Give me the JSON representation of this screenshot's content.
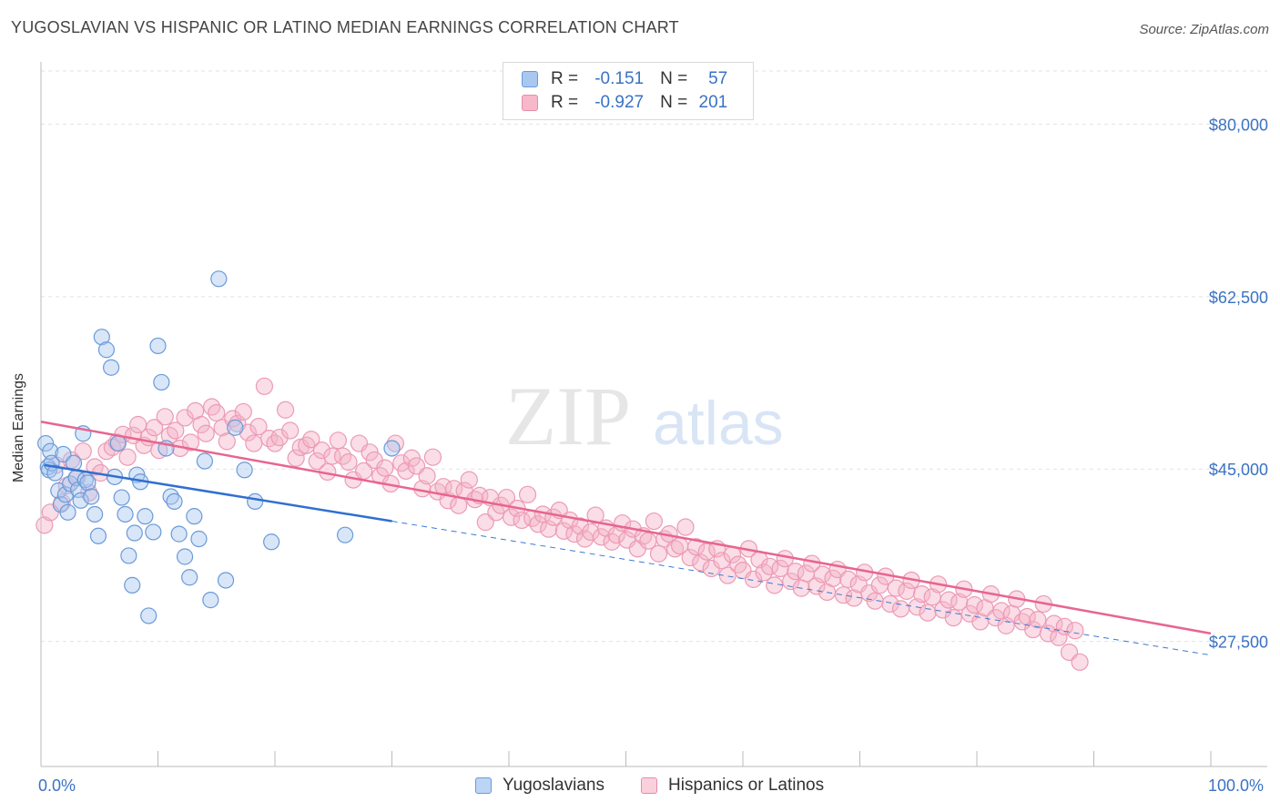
{
  "title": "YUGOSLAVIAN VS HISPANIC OR LATINO MEDIAN EARNINGS CORRELATION CHART",
  "source": "Source: ZipAtlas.com",
  "watermark": {
    "zip": "ZIP",
    "atlas": "atlas"
  },
  "legend_top": {
    "rows": [
      {
        "r_label": "R =",
        "r_value": "-0.151",
        "n_label": "N =",
        "n_value": "57",
        "color": "#a8c8f0",
        "border": "#6a9ad8"
      },
      {
        "r_label": "R =",
        "r_value": "-0.927",
        "n_label": "N =",
        "n_value": "201",
        "color": "#f7b8cc",
        "border": "#e88aa8"
      }
    ]
  },
  "legend_bottom": {
    "series1": "Yugoslavians",
    "series2": "Hispanics or Latinos"
  },
  "colors": {
    "blue": "#3a7ad6",
    "blue_fill": "#a8c8f0",
    "pink": "#e8658f",
    "pink_fill": "#f5b3c8",
    "axis_text": "#3a72c4",
    "grid": "#dddddd"
  },
  "chart_data": {
    "type": "scatter",
    "title": "YUGOSLAVIAN VS HISPANIC OR LATINO MEDIAN EARNINGS CORRELATION CHART",
    "xlabel": "",
    "ylabel": "Median Earnings",
    "x_ticks": [
      "0.0%",
      "100.0%"
    ],
    "y_ticks": [
      {
        "value": 80000,
        "label": "$80,000"
      },
      {
        "value": 62500,
        "label": "$62,500"
      },
      {
        "value": 45000,
        "label": "$45,000"
      },
      {
        "value": 27500,
        "label": "$27,500"
      }
    ],
    "xlim": [
      0,
      100
    ],
    "ylim": [
      14800,
      85400
    ],
    "grid": true,
    "series": [
      {
        "name": "Yugoslavians",
        "color": "#3a7ad6",
        "r": -0.151,
        "n": 57,
        "trend": {
          "x0": 0.3,
          "y0": 45400,
          "x1": 30,
          "y1": 39700,
          "dash_to_x": 100,
          "dash_to_y": 26100
        },
        "points": [
          [
            0.4,
            47600
          ],
          [
            0.6,
            45200
          ],
          [
            0.7,
            44900
          ],
          [
            0.8,
            46800
          ],
          [
            0.9,
            45600
          ],
          [
            1.2,
            44600
          ],
          [
            1.5,
            42800
          ],
          [
            1.7,
            41400
          ],
          [
            1.9,
            46500
          ],
          [
            2.1,
            42400
          ],
          [
            2.3,
            40600
          ],
          [
            2.5,
            43500
          ],
          [
            2.8,
            45600
          ],
          [
            3.0,
            44100
          ],
          [
            3.2,
            42900
          ],
          [
            3.4,
            41800
          ],
          [
            3.6,
            48600
          ],
          [
            3.8,
            43900
          ],
          [
            4.0,
            43600
          ],
          [
            4.3,
            42200
          ],
          [
            4.6,
            40400
          ],
          [
            4.9,
            38200
          ],
          [
            5.2,
            58400
          ],
          [
            5.6,
            57100
          ],
          [
            6.0,
            55300
          ],
          [
            6.3,
            44200
          ],
          [
            6.6,
            47600
          ],
          [
            6.9,
            42100
          ],
          [
            7.2,
            40400
          ],
          [
            7.5,
            36200
          ],
          [
            7.8,
            33200
          ],
          [
            8.0,
            38500
          ],
          [
            8.2,
            44400
          ],
          [
            8.5,
            43700
          ],
          [
            8.9,
            40200
          ],
          [
            9.2,
            30100
          ],
          [
            9.6,
            38600
          ],
          [
            10.0,
            57500
          ],
          [
            10.3,
            53800
          ],
          [
            10.7,
            47100
          ],
          [
            11.1,
            42200
          ],
          [
            11.4,
            41700
          ],
          [
            11.8,
            38400
          ],
          [
            12.3,
            36100
          ],
          [
            12.7,
            34000
          ],
          [
            13.1,
            40200
          ],
          [
            13.5,
            37900
          ],
          [
            14.0,
            45800
          ],
          [
            14.5,
            31700
          ],
          [
            15.2,
            64300
          ],
          [
            15.8,
            33700
          ],
          [
            16.6,
            49200
          ],
          [
            17.4,
            44900
          ],
          [
            18.3,
            41700
          ],
          [
            19.7,
            37600
          ],
          [
            26.0,
            38300
          ],
          [
            30.0,
            47100
          ]
        ]
      },
      {
        "name": "Hispanics or Latinos",
        "color": "#e8658f",
        "r": -0.927,
        "n": 201,
        "trend": {
          "x0": 0.0,
          "y0": 49800,
          "x1": 100,
          "y1": 28300
        },
        "points": [
          [
            0.3,
            39300
          ],
          [
            0.8,
            40600
          ],
          [
            1.3,
            45400
          ],
          [
            1.8,
            41600
          ],
          [
            2.2,
            43300
          ],
          [
            2.6,
            45900
          ],
          [
            3.1,
            44100
          ],
          [
            3.6,
            46800
          ],
          [
            4.1,
            42600
          ],
          [
            4.6,
            45200
          ],
          [
            5.1,
            44600
          ],
          [
            5.6,
            46800
          ],
          [
            6.1,
            47200
          ],
          [
            6.5,
            47700
          ],
          [
            7.0,
            48500
          ],
          [
            7.4,
            46200
          ],
          [
            7.9,
            48400
          ],
          [
            8.3,
            49500
          ],
          [
            8.8,
            47400
          ],
          [
            9.2,
            48200
          ],
          [
            9.7,
            49200
          ],
          [
            10.1,
            46900
          ],
          [
            10.6,
            50300
          ],
          [
            11.0,
            48400
          ],
          [
            11.5,
            48900
          ],
          [
            11.9,
            47100
          ],
          [
            12.3,
            50200
          ],
          [
            12.8,
            47700
          ],
          [
            13.2,
            50900
          ],
          [
            13.7,
            49500
          ],
          [
            14.1,
            48600
          ],
          [
            14.6,
            51300
          ],
          [
            15.0,
            50700
          ],
          [
            15.5,
            49200
          ],
          [
            15.9,
            47800
          ],
          [
            16.4,
            50100
          ],
          [
            16.8,
            49600
          ],
          [
            17.3,
            50800
          ],
          [
            17.7,
            48700
          ],
          [
            18.2,
            47600
          ],
          [
            18.6,
            49300
          ],
          [
            19.1,
            53400
          ],
          [
            19.5,
            48100
          ],
          [
            20.0,
            47600
          ],
          [
            20.4,
            48200
          ],
          [
            20.9,
            51000
          ],
          [
            21.3,
            48900
          ],
          [
            21.8,
            46100
          ],
          [
            22.2,
            47200
          ],
          [
            22.7,
            47400
          ],
          [
            23.1,
            48000
          ],
          [
            23.6,
            45800
          ],
          [
            24.0,
            46900
          ],
          [
            24.5,
            44700
          ],
          [
            24.9,
            46300
          ],
          [
            25.4,
            47900
          ],
          [
            25.8,
            46300
          ],
          [
            26.3,
            45700
          ],
          [
            26.7,
            43900
          ],
          [
            27.2,
            47600
          ],
          [
            27.6,
            44800
          ],
          [
            28.1,
            46700
          ],
          [
            28.5,
            45900
          ],
          [
            29.0,
            44300
          ],
          [
            29.4,
            45100
          ],
          [
            29.9,
            43500
          ],
          [
            30.3,
            47600
          ],
          [
            30.8,
            45600
          ],
          [
            31.2,
            44800
          ],
          [
            31.7,
            46100
          ],
          [
            32.1,
            45300
          ],
          [
            32.6,
            43000
          ],
          [
            33.0,
            44300
          ],
          [
            33.5,
            46200
          ],
          [
            33.9,
            42700
          ],
          [
            34.4,
            43200
          ],
          [
            34.8,
            41800
          ],
          [
            35.3,
            43000
          ],
          [
            35.7,
            41300
          ],
          [
            36.2,
            42800
          ],
          [
            36.6,
            43900
          ],
          [
            37.1,
            41900
          ],
          [
            37.5,
            42300
          ],
          [
            38.0,
            39600
          ],
          [
            38.4,
            42100
          ],
          [
            38.9,
            40600
          ],
          [
            39.3,
            41300
          ],
          [
            39.8,
            42100
          ],
          [
            40.2,
            40100
          ],
          [
            40.7,
            41000
          ],
          [
            41.1,
            39800
          ],
          [
            41.6,
            42400
          ],
          [
            42.0,
            40000
          ],
          [
            42.5,
            39400
          ],
          [
            42.9,
            40400
          ],
          [
            43.4,
            38900
          ],
          [
            43.8,
            40100
          ],
          [
            44.3,
            40800
          ],
          [
            44.7,
            38700
          ],
          [
            45.2,
            39800
          ],
          [
            45.6,
            38400
          ],
          [
            46.1,
            39200
          ],
          [
            46.5,
            37900
          ],
          [
            47.0,
            38600
          ],
          [
            47.4,
            40300
          ],
          [
            47.9,
            38100
          ],
          [
            48.3,
            39000
          ],
          [
            48.8,
            37600
          ],
          [
            49.2,
            38300
          ],
          [
            49.7,
            39500
          ],
          [
            50.1,
            37800
          ],
          [
            50.6,
            38900
          ],
          [
            51.0,
            36900
          ],
          [
            51.5,
            38200
          ],
          [
            51.9,
            37700
          ],
          [
            52.4,
            39700
          ],
          [
            52.8,
            36400
          ],
          [
            53.3,
            37900
          ],
          [
            53.7,
            38400
          ],
          [
            54.2,
            36900
          ],
          [
            54.6,
            37200
          ],
          [
            55.1,
            39100
          ],
          [
            55.5,
            36000
          ],
          [
            56.0,
            37100
          ],
          [
            56.4,
            35500
          ],
          [
            56.9,
            36600
          ],
          [
            57.3,
            34900
          ],
          [
            57.8,
            36900
          ],
          [
            58.2,
            35700
          ],
          [
            58.7,
            34200
          ],
          [
            59.1,
            36300
          ],
          [
            59.6,
            35300
          ],
          [
            60.0,
            34700
          ],
          [
            60.5,
            36900
          ],
          [
            60.9,
            33800
          ],
          [
            61.4,
            35800
          ],
          [
            61.8,
            34500
          ],
          [
            62.3,
            35100
          ],
          [
            62.7,
            33200
          ],
          [
            63.2,
            34900
          ],
          [
            63.6,
            35900
          ],
          [
            64.1,
            33600
          ],
          [
            64.5,
            34600
          ],
          [
            65.0,
            32900
          ],
          [
            65.4,
            34400
          ],
          [
            65.9,
            35400
          ],
          [
            66.3,
            33100
          ],
          [
            66.8,
            34300
          ],
          [
            67.2,
            32500
          ],
          [
            67.7,
            33900
          ],
          [
            68.1,
            34800
          ],
          [
            68.6,
            32200
          ],
          [
            69.0,
            33800
          ],
          [
            69.5,
            31900
          ],
          [
            69.9,
            33300
          ],
          [
            70.4,
            34500
          ],
          [
            70.8,
            32400
          ],
          [
            71.3,
            31600
          ],
          [
            71.7,
            33200
          ],
          [
            72.2,
            34100
          ],
          [
            72.6,
            31300
          ],
          [
            73.1,
            32900
          ],
          [
            73.5,
            30800
          ],
          [
            74.0,
            32600
          ],
          [
            74.4,
            33700
          ],
          [
            74.9,
            31000
          ],
          [
            75.3,
            32300
          ],
          [
            75.8,
            30400
          ],
          [
            76.2,
            32000
          ],
          [
            76.7,
            33300
          ],
          [
            77.1,
            30700
          ],
          [
            77.6,
            31700
          ],
          [
            78.0,
            29900
          ],
          [
            78.5,
            31500
          ],
          [
            78.9,
            32800
          ],
          [
            79.4,
            30300
          ],
          [
            79.8,
            31200
          ],
          [
            80.3,
            29500
          ],
          [
            80.7,
            30900
          ],
          [
            81.2,
            32300
          ],
          [
            81.6,
            29900
          ],
          [
            82.1,
            30600
          ],
          [
            82.5,
            29100
          ],
          [
            83.0,
            30300
          ],
          [
            83.4,
            31800
          ],
          [
            83.9,
            29500
          ],
          [
            84.3,
            30000
          ],
          [
            84.8,
            28700
          ],
          [
            85.2,
            29700
          ],
          [
            85.7,
            31300
          ],
          [
            86.1,
            28300
          ],
          [
            86.6,
            29300
          ],
          [
            87.0,
            27900
          ],
          [
            87.5,
            29000
          ],
          [
            87.9,
            26400
          ],
          [
            88.4,
            28600
          ],
          [
            88.8,
            25400
          ]
        ]
      }
    ]
  }
}
